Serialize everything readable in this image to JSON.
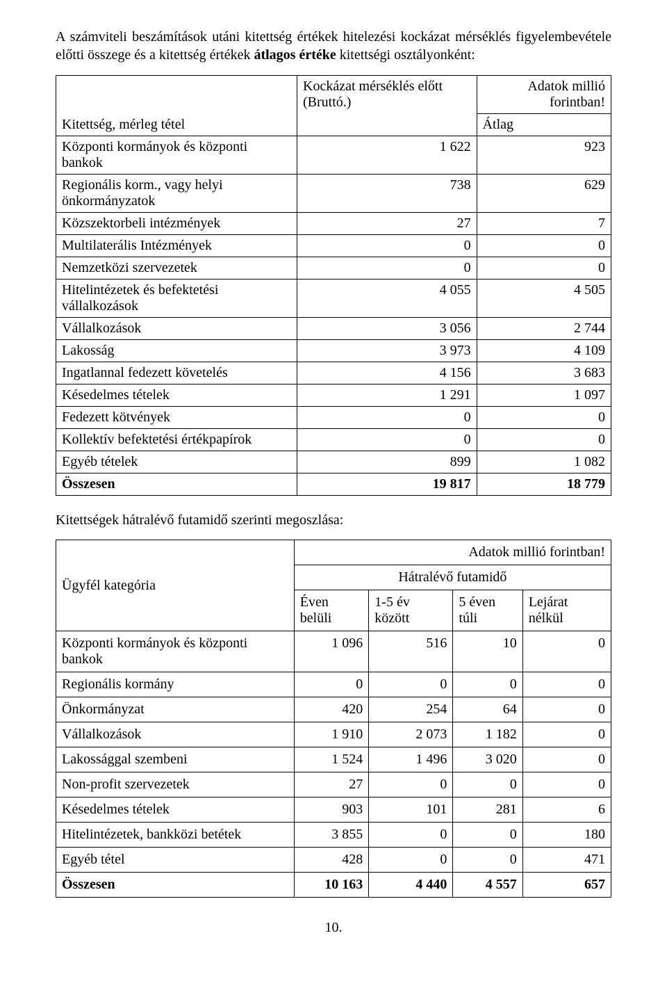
{
  "intro": {
    "text_before_bold": "A számviteli beszámítások utáni kitettség értékek hitelezési kockázat mérséklés figyelembevétele előtti összege és a kitettség értékek ",
    "bold_text": "átlagos értéke",
    "text_after_bold": " kitettségi osztályonként:"
  },
  "table1": {
    "caption_right": "Adatok millió forintban!",
    "col1_header": "Kitettség, mérleg tétel",
    "col2_header": "Kockázat mérséklés előtt (Bruttó.)",
    "col3_header": "Átlag",
    "rows": [
      {
        "label": "Központi kormányok és központi bankok",
        "v1": "1 622",
        "v2": "923"
      },
      {
        "label": "Regionális korm., vagy helyi önkormányzatok",
        "v1": "738",
        "v2": "629"
      },
      {
        "label": "Közszektorbeli intézmények",
        "v1": "27",
        "v2": "7"
      },
      {
        "label": "Multilaterális Intézmények",
        "v1": "0",
        "v2": "0"
      },
      {
        "label": "Nemzetközi szervezetek",
        "v1": "0",
        "v2": "0"
      },
      {
        "label": "Hitelintézetek és befektetési vállalkozások",
        "v1": "4 055",
        "v2": "4 505"
      },
      {
        "label": "Vállalkozások",
        "v1": "3 056",
        "v2": "2 744"
      },
      {
        "label": "Lakosság",
        "v1": "3 973",
        "v2": "4 109"
      },
      {
        "label": "Ingatlannal fedezett követelés",
        "v1": "4 156",
        "v2": "3 683"
      },
      {
        "label": "Késedelmes tételek",
        "v1": "1 291",
        "v2": "1 097"
      },
      {
        "label": "Fedezett kötvények",
        "v1": "0",
        "v2": "0"
      },
      {
        "label": "Kollektív befektetési értékpapírok",
        "v1": "0",
        "v2": "0"
      },
      {
        "label": "Egyéb tételek",
        "v1": "899",
        "v2": "1 082"
      }
    ],
    "total_label": "Összesen",
    "total_v1": "19 817",
    "total_v2": "18 779"
  },
  "mid_text": "Kitettségek hátralévő futamidő szerinti megoszlása:",
  "table2": {
    "caption_right": "Adatok millió forintban!",
    "row1_col1": "Ügyfél kategória",
    "row1_merged": "Hátralévő futamidő",
    "col_headers": [
      "Éven belüli",
      "1-5 év között",
      "5 éven túli",
      "Lejárat nélkül"
    ],
    "rows": [
      {
        "label": "Központi kormányok és központi bankok",
        "v": [
          "1 096",
          "516",
          "10",
          "0"
        ]
      },
      {
        "label": "Regionális kormány",
        "v": [
          "0",
          "0",
          "0",
          "0"
        ]
      },
      {
        "label": "Önkormányzat",
        "v": [
          "420",
          "254",
          "64",
          "0"
        ]
      },
      {
        "label": "Vállalkozások",
        "v": [
          "1 910",
          "2 073",
          "1 182",
          "0"
        ]
      },
      {
        "label": "Lakossággal szembeni",
        "v": [
          "1 524",
          "1 496",
          "3 020",
          "0"
        ]
      },
      {
        "label": "Non-profit szervezetek",
        "v": [
          "27",
          "0",
          "0",
          "0"
        ]
      },
      {
        "label": "Késedelmes tételek",
        "v": [
          "903",
          "101",
          "281",
          "6"
        ]
      },
      {
        "label": "Hitelintézetek, bankközi betétek",
        "v": [
          "3 855",
          "0",
          "0",
          "180"
        ]
      },
      {
        "label": "Egyéb tétel",
        "v": [
          "428",
          "0",
          "0",
          "471"
        ]
      }
    ],
    "total_label": "Összesen",
    "total_v": [
      "10 163",
      "4 440",
      "4 557",
      "657"
    ]
  },
  "page_number": "10."
}
